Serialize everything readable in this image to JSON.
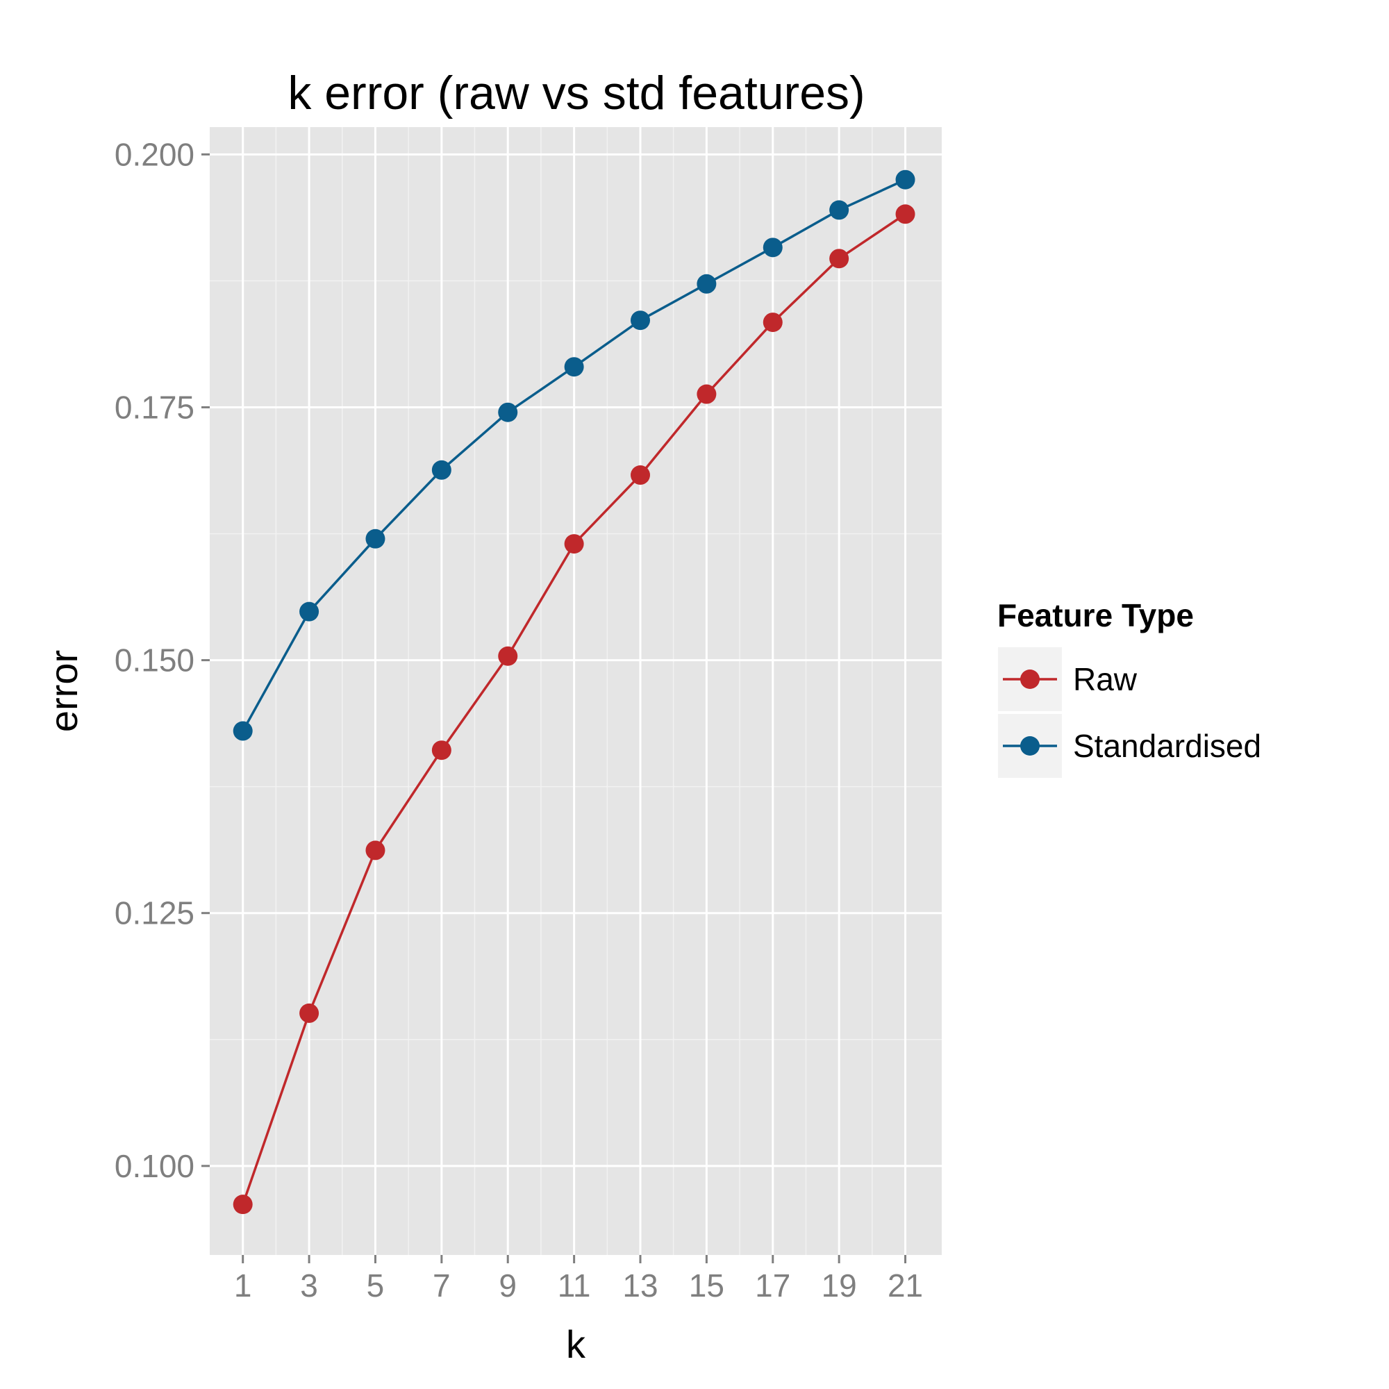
{
  "chart_data": {
    "type": "line",
    "title": "k error (raw vs std features)",
    "xlabel": "k",
    "ylabel": "error",
    "x": [
      1,
      3,
      5,
      7,
      9,
      11,
      13,
      15,
      17,
      19,
      21
    ],
    "x_ticks": [
      "1",
      "3",
      "5",
      "7",
      "9",
      "11",
      "13",
      "15",
      "17",
      "19",
      "21"
    ],
    "y_ticks": [
      "0.100",
      "0.125",
      "0.150",
      "0.175",
      "0.200"
    ],
    "xlim": [
      0,
      22.1
    ],
    "ylim": [
      0.0912,
      0.2027
    ],
    "grid": true,
    "legend": {
      "title": "Feature Type",
      "position": "right"
    },
    "series": [
      {
        "name": "Raw",
        "color": "#c0282b",
        "values": [
          0.0962,
          0.1151,
          0.1312,
          0.1411,
          0.1504,
          0.1615,
          0.1683,
          0.1763,
          0.1834,
          0.1897,
          0.1941
        ]
      },
      {
        "name": "Standardised",
        "color": "#0a5d8c",
        "values": [
          0.143,
          0.1548,
          0.162,
          0.1688,
          0.1745,
          0.179,
          0.1836,
          0.1872,
          0.1908,
          0.1945,
          0.1975
        ]
      }
    ]
  }
}
